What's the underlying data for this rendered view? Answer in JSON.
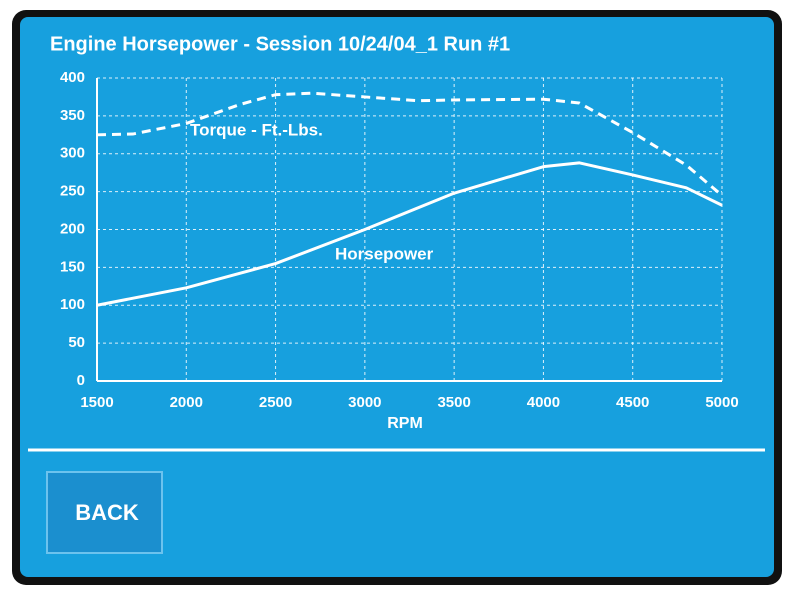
{
  "chart_data": {
    "type": "line",
    "title": "Engine Horsepower - Session 10/24/04_1 Run #1",
    "xlabel": "RPM",
    "xlim": [
      1500,
      5000
    ],
    "xticks": [
      1500,
      2000,
      2500,
      3000,
      3500,
      4000,
      4500,
      5000
    ],
    "ylim": [
      0,
      400
    ],
    "yticks": [
      0,
      50,
      100,
      150,
      200,
      250,
      300,
      350,
      400
    ],
    "grid": true,
    "series": [
      {
        "name": "Torque - Ft.-Lbs.",
        "color": "#ffffff",
        "line_style": "dashed",
        "x": [
          1500,
          1700,
          2000,
          2300,
          2500,
          2700,
          3000,
          3300,
          3500,
          4000,
          4200,
          4500,
          4800,
          5000
        ],
        "values": [
          325,
          326,
          340,
          365,
          378,
          380,
          375,
          370,
          371,
          372,
          367,
          328,
          285,
          245
        ]
      },
      {
        "name": "Horsepower",
        "color": "#ffffff",
        "line_style": "solid",
        "x": [
          1500,
          2000,
          2500,
          3000,
          3500,
          4000,
          4200,
          4500,
          4800,
          5000
        ],
        "values": [
          100,
          123,
          155,
          200,
          248,
          283,
          288,
          272,
          255,
          232
        ]
      }
    ]
  },
  "button": {
    "label": "BACK"
  }
}
